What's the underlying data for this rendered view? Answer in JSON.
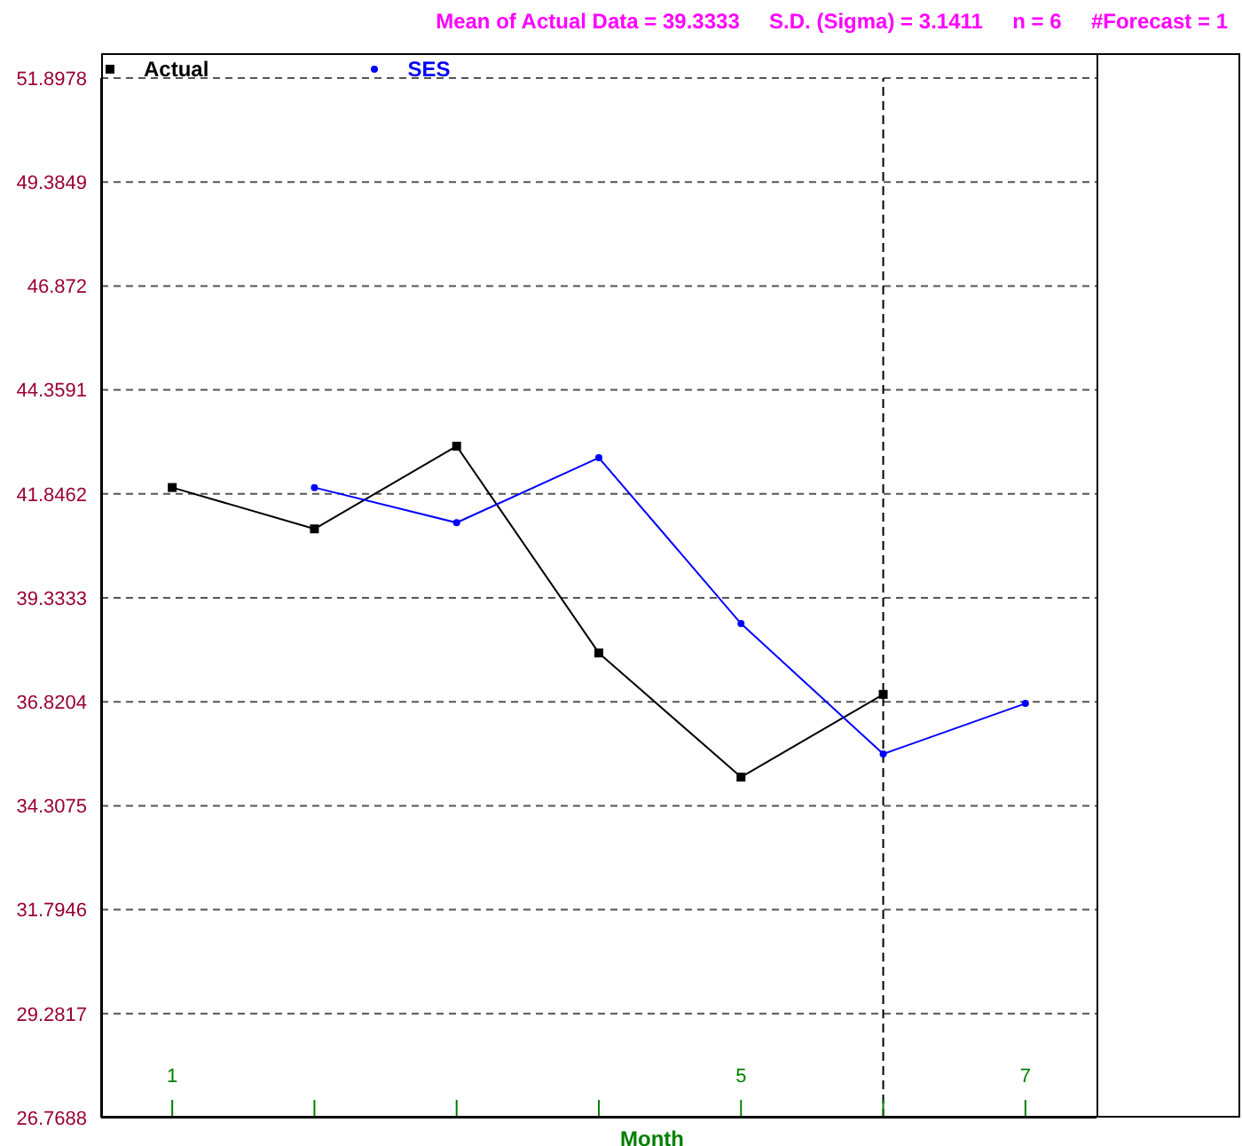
{
  "chart_data": {
    "type": "line",
    "xlabel": "Month",
    "annotations": [
      "Mean of Actual Data = 39.3333     S.D. (Sigma) = 3.1411     n = 6     #Forecast = 1"
    ],
    "x": [
      1,
      2,
      3,
      4,
      5,
      6,
      7
    ],
    "series": [
      {
        "name": "Actual",
        "color": "#000000",
        "marker": "square",
        "values": [
          42,
          41,
          43,
          38,
          35,
          37,
          null
        ]
      },
      {
        "name": "SES",
        "color": "#0000ff",
        "marker": "circle",
        "values": [
          null,
          42,
          41.15,
          42.72,
          38.71,
          35.56,
          36.78
        ]
      }
    ],
    "xlim": [
      0.5,
      7.5
    ],
    "xticks": [
      {
        "value": 1,
        "label": "1"
      },
      {
        "value": 2,
        "label": null
      },
      {
        "value": 3,
        "label": null
      },
      {
        "value": 4,
        "label": null
      },
      {
        "value": 5,
        "label": "5"
      },
      {
        "value": 6,
        "label": null
      },
      {
        "value": 7,
        "label": "7"
      }
    ],
    "ylim": [
      26.7688,
      51.8978
    ],
    "yticks": [
      26.7688,
      29.2817,
      31.7946,
      34.3075,
      36.8204,
      39.3333,
      41.8462,
      44.3591,
      46.872,
      49.3849,
      51.8978
    ],
    "ref_lines": [
      {
        "axis": "x",
        "value": 6,
        "label": null,
        "line_style": "dashed",
        "color": "#000000"
      }
    ],
    "grid": "y",
    "legend": "top left",
    "line_style": "solid"
  }
}
